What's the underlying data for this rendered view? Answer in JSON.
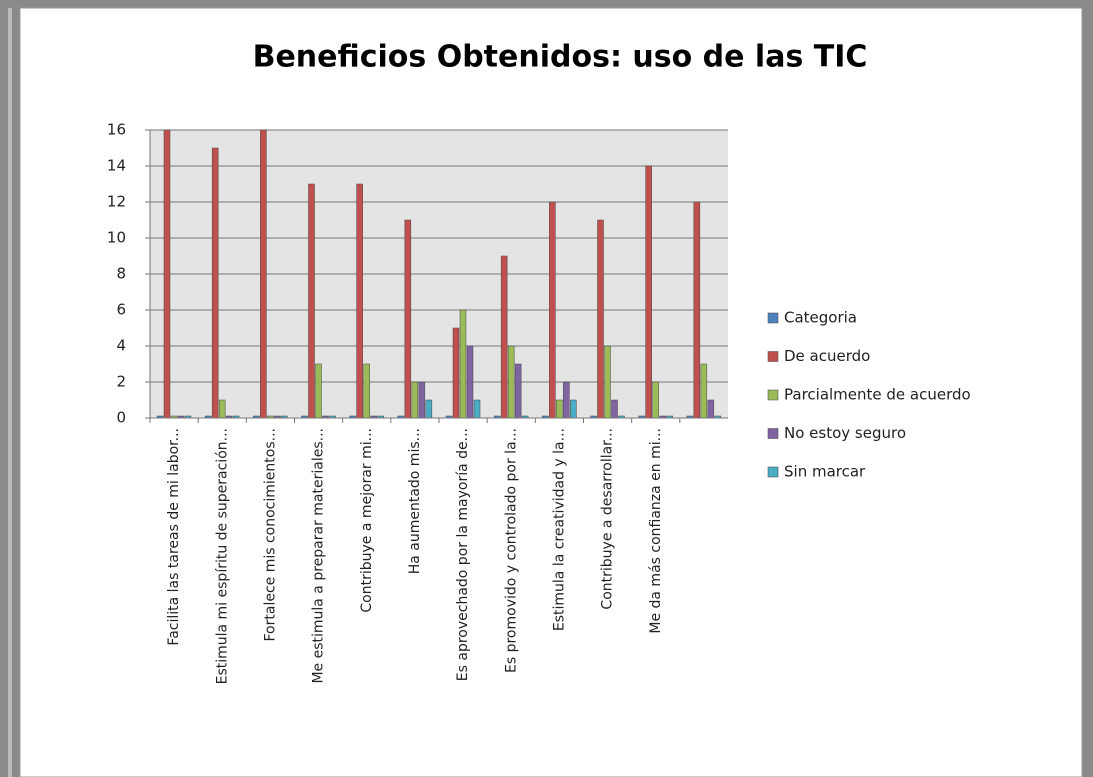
{
  "chart_data": {
    "type": "bar",
    "title": "Beneficios Obtenidos: uso de las TIC",
    "categories": [
      "Facilita las tareas de mi labor...",
      "Estimula mi espíritu de superación...",
      "Fortalece mis conocimientos...",
      "Me estimula a preparar materiales...",
      "Contribuye a mejorar mi...",
      "Ha aumentado mis...",
      "Es aprovechado por la mayoría de...",
      "Es promovido y controlado por la...",
      "Estimula la creatividad y la...",
      "Contribuye a desarrollar...",
      "Me da más confianza en mi...",
      null
    ],
    "series": [
      {
        "name": "Categoria",
        "color": "#4f81bd",
        "values": [
          0,
          0,
          0,
          0,
          0,
          0,
          0,
          0,
          0,
          0,
          0,
          0
        ]
      },
      {
        "name": "De acuerdo",
        "color": "#c0504d",
        "values": [
          16,
          15,
          16,
          13,
          13,
          11,
          5,
          9,
          12,
          11,
          14,
          12
        ]
      },
      {
        "name": "Parcialmente de acuerdo",
        "color": "#9bbb59",
        "values": [
          0,
          1,
          0,
          3,
          3,
          2,
          6,
          4,
          1,
          4,
          2,
          3
        ]
      },
      {
        "name": "No estoy seguro",
        "color": "#8064a2",
        "values": [
          0,
          0,
          0,
          0,
          0,
          2,
          4,
          3,
          2,
          1,
          0,
          1
        ]
      },
      {
        "name": "Sin marcar",
        "color": "#4bacc6",
        "values": [
          0,
          0,
          0,
          0,
          0,
          1,
          1,
          0,
          1,
          0,
          0,
          0
        ]
      }
    ],
    "ylim": [
      0,
      16
    ],
    "yticks": [
      0,
      2,
      4,
      6,
      8,
      10,
      12,
      14,
      16
    ],
    "grid": true,
    "legend": "right"
  }
}
